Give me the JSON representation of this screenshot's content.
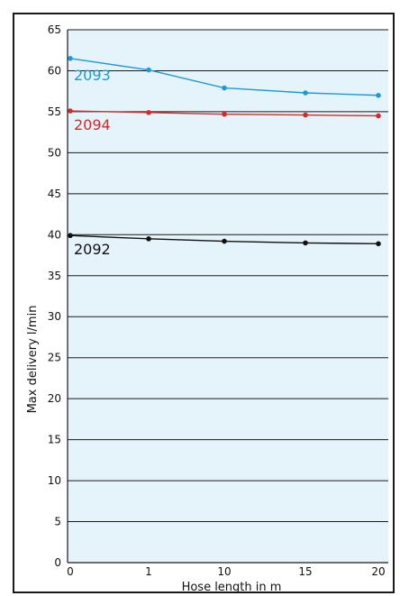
{
  "chart_data": {
    "type": "line",
    "xlabel": "Hose length in m",
    "ylabel": "Max delivery  l/min",
    "ylim": [
      0,
      65
    ],
    "yticks": [
      0,
      5,
      10,
      15,
      20,
      25,
      30,
      35,
      40,
      45,
      50,
      55,
      60,
      65
    ],
    "x": [
      "0",
      "1",
      "10",
      "15",
      "20"
    ],
    "grid": true,
    "plot_background": "#e5f3fb",
    "series": [
      {
        "name": "2093",
        "color": "#1f9ad6",
        "values": [
          61.5,
          60.1,
          57.9,
          57.3,
          57.0
        ]
      },
      {
        "name": "2094",
        "color": "#d42a2a",
        "values": [
          55.1,
          54.9,
          54.7,
          54.6,
          54.5
        ]
      },
      {
        "name": "2092",
        "color": "#111111",
        "values": [
          39.9,
          39.5,
          39.2,
          39.0,
          38.9
        ]
      }
    ]
  }
}
